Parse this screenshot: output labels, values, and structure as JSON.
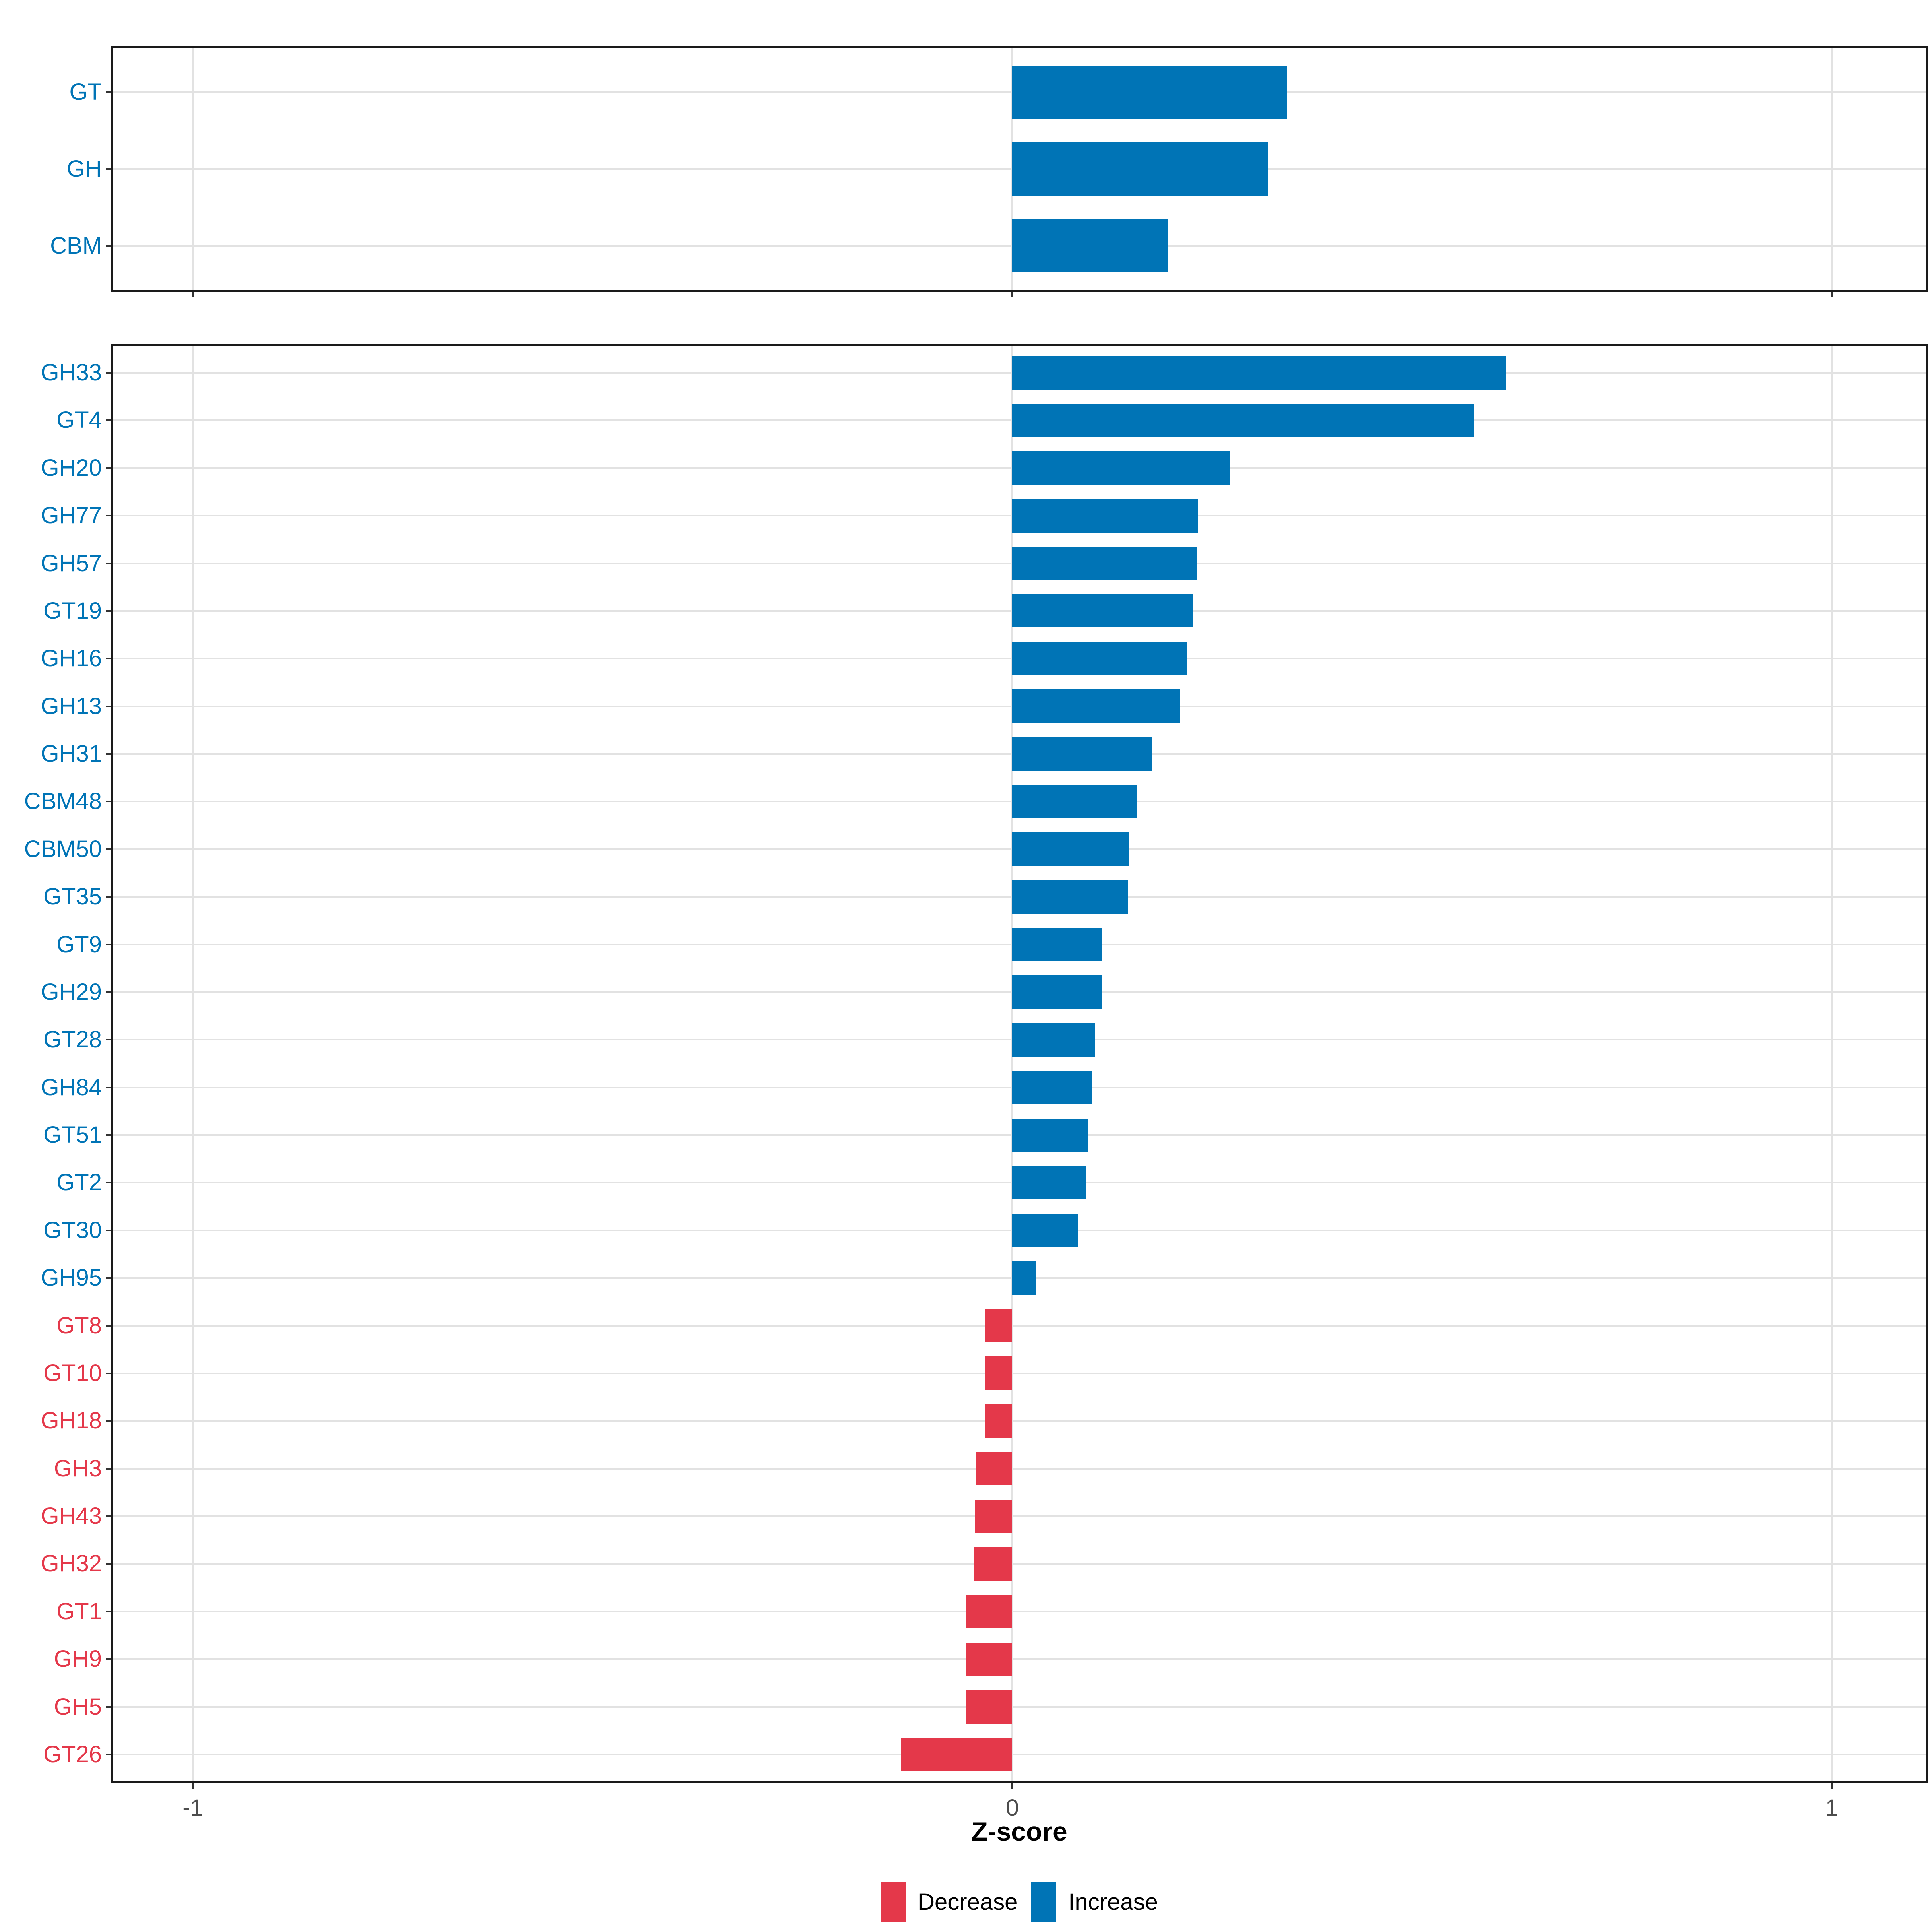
{
  "figure": {
    "background": "#FFFFFF"
  },
  "axis": {
    "title": "Z-score",
    "ticks": [
      {
        "label": "-1",
        "value": -1
      },
      {
        "label": "0",
        "value": 0
      },
      {
        "label": "1",
        "value": 1
      }
    ],
    "xlim": [
      -1.1,
      1.12
    ]
  },
  "legend": {
    "items": [
      {
        "label": "Decrease",
        "color": "#E4384A"
      },
      {
        "label": "Increase",
        "color": "#0074B6"
      }
    ]
  },
  "colors": {
    "increase": "#0074B6",
    "decrease": "#E4384A",
    "gridline": "#E2E2E2",
    "panel_border": "#1A1A1A",
    "tick_mark": "#333333",
    "tick_label": "#4D4D4D",
    "axis_title": "#000000",
    "legend_text": "#000000"
  },
  "chart_data": [
    {
      "type": "bar",
      "orientation": "horizontal",
      "panel": "summary",
      "title": "",
      "xlabel": "Z-score",
      "xlim": [
        -1.1,
        1.12
      ],
      "grid": "horizontal line per category; vertical lines at -1, 0, 1",
      "legend_position": "bottom",
      "color_rule": "value >= 0 uses Increase blue, value < 0 uses Decrease red; category labels colored to match",
      "categories": [
        "GT",
        "GH",
        "CBM"
      ],
      "values": [
        0.335,
        0.312,
        0.19
      ]
    },
    {
      "type": "bar",
      "orientation": "horizontal",
      "panel": "families",
      "title": "",
      "xlabel": "Z-score",
      "xlim": [
        -1.1,
        1.12
      ],
      "grid": "horizontal line per category; vertical lines at -1, 0, 1",
      "legend_position": "bottom",
      "color_rule": "value >= 0 uses Increase blue, value < 0 uses Decrease red; category labels colored to match",
      "categories": [
        "GH33",
        "GT4",
        "GH20",
        "GH77",
        "GH57",
        "GT19",
        "GH16",
        "GH13",
        "GH31",
        "CBM48",
        "CBM50",
        "GT35",
        "GT9",
        "GH29",
        "GT28",
        "GH84",
        "GT51",
        "GT2",
        "GT30",
        "GH95",
        "GT8",
        "GT10",
        "GH18",
        "GH3",
        "GH43",
        "GH32",
        "GT1",
        "GH9",
        "GH5",
        "GT26"
      ],
      "values": [
        0.602,
        0.563,
        0.266,
        0.227,
        0.226,
        0.22,
        0.213,
        0.205,
        0.171,
        0.152,
        0.142,
        0.141,
        0.11,
        0.109,
        0.101,
        0.097,
        0.092,
        0.09,
        0.08,
        0.029,
        -0.033,
        -0.033,
        -0.034,
        -0.044,
        -0.045,
        -0.046,
        -0.057,
        -0.056,
        -0.056,
        -0.136
      ]
    }
  ]
}
